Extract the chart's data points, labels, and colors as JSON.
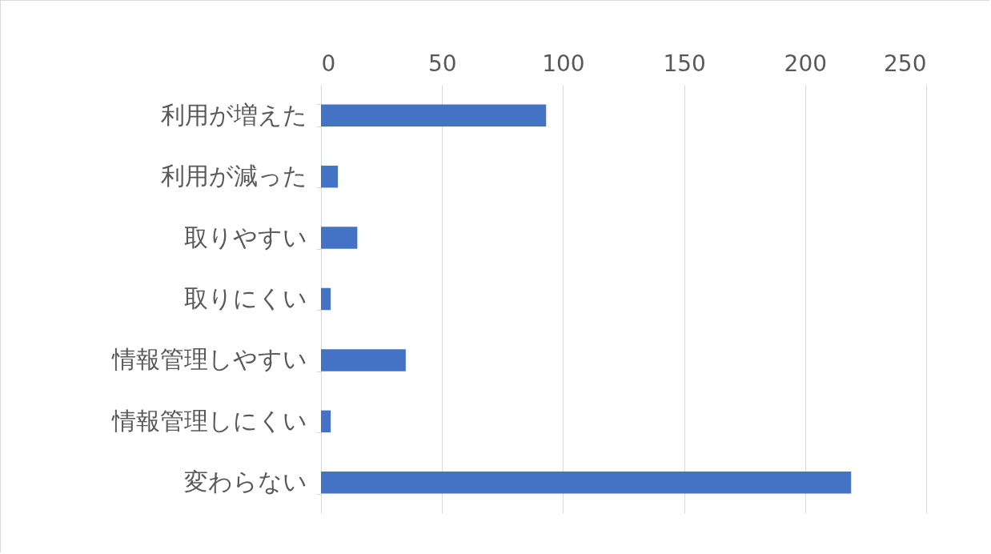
{
  "chart_data": {
    "type": "bar",
    "orientation": "horizontal",
    "categories": [
      "利用が増えた",
      "利用が減った",
      "取りやすい",
      "取りにくい",
      "情報管理しやすい",
      "情報管理しにくい",
      "変わらない"
    ],
    "values": [
      93,
      7,
      15,
      4,
      35,
      4,
      219
    ],
    "color": "#4472c4",
    "xlim": [
      0,
      250
    ],
    "xticks": [
      0,
      50,
      100,
      150,
      200,
      250
    ],
    "grid": "x"
  }
}
